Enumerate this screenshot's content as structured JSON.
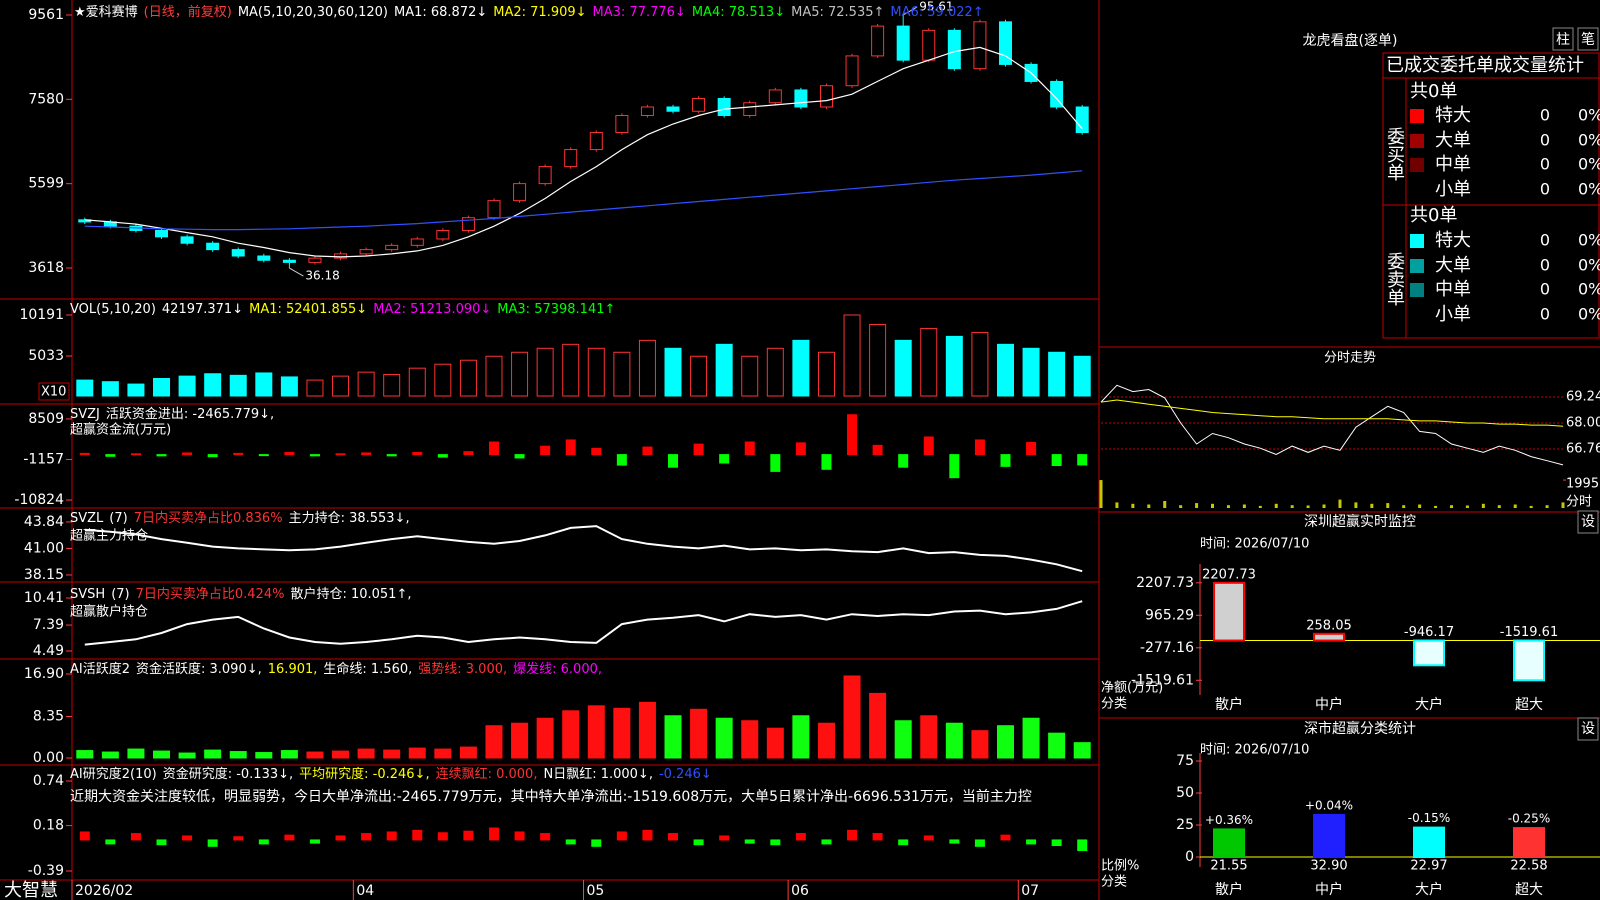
{
  "chart_data": [
    {
      "type": "candlestick",
      "title": "★爱科赛博",
      "subtitle": "(日线，前复权)",
      "indicator": "MA(5,10,20,30,60,120)",
      "legend": [
        {
          "label": "MA1: 68.872↓",
          "color": "#ffffff"
        },
        {
          "label": "MA2: 71.909↓",
          "color": "#ffff00"
        },
        {
          "label": "MA3: 77.776↓",
          "color": "#ff00ff"
        },
        {
          "label": "MA4: 78.513↓",
          "color": "#00ff00"
        },
        {
          "label": "MA5: 72.535↑",
          "color": "#c0c0c0"
        },
        {
          "label": "MA6: 59.022↑",
          "color": "#3050ff"
        }
      ],
      "open": [
        4750,
        4700,
        4600,
        4500,
        4350,
        4200,
        4050,
        3900,
        3800,
        3750,
        3850,
        3950,
        4050,
        4150,
        4300,
        4500,
        4800,
        5200,
        5600,
        6000,
        6400,
        6800,
        7200,
        7400,
        7300,
        7600,
        7200,
        7500,
        7800,
        7400,
        7900,
        8600,
        9300,
        8500,
        9200,
        8300,
        9400,
        8400,
        8000,
        7400
      ],
      "high": [
        4800,
        4750,
        4650,
        4550,
        4400,
        4250,
        4100,
        3950,
        3850,
        3900,
        4000,
        4100,
        4200,
        4350,
        4550,
        4850,
        5250,
        5650,
        6050,
        6450,
        6850,
        7250,
        7450,
        7450,
        7650,
        7650,
        7550,
        7850,
        7850,
        7950,
        8650,
        9350,
        9561,
        9250,
        9250,
        9450,
        9450,
        8450,
        8050,
        7450
      ],
      "low": [
        4650,
        4550,
        4450,
        4300,
        4150,
        4000,
        3850,
        3750,
        3618,
        3700,
        3800,
        3900,
        4000,
        4100,
        4250,
        4450,
        4750,
        5150,
        5550,
        5950,
        6350,
        6750,
        7150,
        7250,
        7250,
        7150,
        7150,
        7450,
        7350,
        7350,
        7850,
        8550,
        8450,
        8450,
        8250,
        8250,
        8350,
        7950,
        7350,
        6750
      ],
      "close": [
        4700,
        4600,
        4500,
        4350,
        4200,
        4050,
        3900,
        3800,
        3750,
        3850,
        3950,
        4050,
        4150,
        4300,
        4500,
        4800,
        5200,
        5600,
        6000,
        6400,
        6800,
        7200,
        7400,
        7300,
        7600,
        7200,
        7500,
        7800,
        7400,
        7900,
        8600,
        9300,
        8500,
        9200,
        8300,
        9400,
        8400,
        8000,
        7400,
        6800
      ],
      "up_color": "#ff3232",
      "down_color": "#00ffff",
      "series": [
        {
          "color": "#ffffff",
          "values": [
            4750,
            4700,
            4650,
            4550,
            4450,
            4350,
            4200,
            4100,
            3980,
            3900,
            3880,
            3900,
            3950,
            4020,
            4150,
            4350,
            4600,
            4900,
            5250,
            5650,
            6000,
            6400,
            6750,
            7000,
            7200,
            7350,
            7400,
            7450,
            7500,
            7550,
            7700,
            8000,
            8300,
            8500,
            8700,
            8800,
            8600,
            8200,
            7600,
            6887
          ]
        },
        {
          "color": "#3050ff",
          "values": [
            4600,
            4580,
            4560,
            4540,
            4530,
            4520,
            4520,
            4530,
            4540,
            4560,
            4580,
            4600,
            4630,
            4660,
            4700,
            4740,
            4780,
            4830,
            4880,
            4930,
            4980,
            5030,
            5080,
            5130,
            5180,
            5230,
            5280,
            5330,
            5380,
            5430,
            5480,
            5530,
            5580,
            5630,
            5680,
            5720,
            5760,
            5800,
            5850,
            5902
          ]
        }
      ],
      "annotations": [
        {
          "value": 9561,
          "label": "95.61"
        },
        {
          "value": 3618,
          "label": "36.18"
        }
      ],
      "ylim": [
        2890,
        9866
      ],
      "yticks": [
        3618,
        5599,
        7580,
        9561
      ],
      "xticks": [
        {
          "value": 0,
          "label": "2026/02"
        },
        {
          "value": 11,
          "label": "04"
        },
        {
          "value": 20,
          "label": "05"
        },
        {
          "value": 28,
          "label": "06"
        },
        {
          "value": 37,
          "label": "07"
        }
      ]
    },
    {
      "type": "bar",
      "title": "VOL(5,10,20)",
      "legend": [
        {
          "label": "42197.371↓",
          "color": "#ffffff"
        },
        {
          "label": "MA1: 52401.855↓",
          "color": "#ffff00"
        },
        {
          "label": "MA2: 51213.090↓",
          "color": "#ff00ff"
        },
        {
          "label": "MA3: 57398.141↑",
          "color": "#00ff00"
        }
      ],
      "unit_label": "X10",
      "values": [
        2000,
        1800,
        1500,
        2200,
        2500,
        2800,
        2600,
        2900,
        2400,
        2000,
        2500,
        3000,
        2700,
        3500,
        4000,
        4500,
        5000,
        5500,
        6000,
        6500,
        6000,
        5500,
        7000,
        6000,
        5000,
        6500,
        5000,
        6000,
        7000,
        5500,
        10191,
        9000,
        7000,
        8500,
        7500,
        8000,
        6500,
        6000,
        5500,
        5000
      ],
      "up_color": "#ff3232",
      "down_color": "#00ffff",
      "ylim": [
        0,
        11449
      ],
      "yticks": [
        5033,
        10191
      ]
    },
    {
      "type": "bar",
      "title": "SVZJ",
      "legend": [
        {
          "label": "活跃资金进出: -2465.779↓,",
          "color": "#ffffff"
        }
      ],
      "subtitle": "超赢资金流(万元)",
      "values": [
        300,
        -400,
        200,
        -300,
        400,
        -500,
        300,
        -200,
        500,
        -300,
        200,
        400,
        -300,
        500,
        -600,
        700,
        3000,
        -800,
        2000,
        3500,
        1500,
        -2500,
        1800,
        -3000,
        2500,
        -2000,
        3000,
        -4000,
        2800,
        -3500,
        9500,
        2200,
        -3000,
        4200,
        -5500,
        3500,
        -2800,
        2900,
        -2600,
        -2466
      ],
      "pos_color": "#ff0000",
      "neg_color": "#00ff00",
      "ylim": [
        -11296,
        10631
      ],
      "yticks": [
        -10824,
        -1157,
        8509
      ]
    },
    {
      "type": "line",
      "title": "SVZL",
      "legend": [
        {
          "label": "(7)",
          "color": "#ffffff"
        },
        {
          "label": "7日内买卖净占比0.836%",
          "color": "#ff3232"
        },
        {
          "label": "主力持仓: 38.553↓,",
          "color": "#ffffff"
        }
      ],
      "subtitle": "超赢主力持仓",
      "color": "#ffffff",
      "values": [
        43.0,
        42.8,
        42.5,
        42.0,
        41.6,
        41.2,
        41.0,
        40.9,
        40.8,
        40.9,
        41.2,
        41.6,
        42.0,
        42.3,
        42.0,
        41.7,
        41.5,
        41.8,
        42.4,
        43.2,
        43.4,
        42.0,
        41.5,
        41.2,
        41.0,
        41.3,
        40.9,
        41.0,
        40.8,
        40.9,
        40.7,
        40.6,
        41.0,
        40.5,
        40.6,
        40.3,
        40.2,
        39.8,
        39.3,
        38.553
      ],
      "ylim": [
        37.61,
        44.91
      ],
      "yticks": [
        38.15,
        {
          "value": 41,
          "label": "41.00"
        },
        43.84
      ]
    },
    {
      "type": "line",
      "title": "SVSH",
      "legend": [
        {
          "label": "(7)",
          "color": "#ffffff"
        },
        {
          "label": "7日内买卖净占比0.424%",
          "color": "#ff3232"
        },
        {
          "label": "散户持仓: 10.051↑,",
          "color": "#ffffff"
        }
      ],
      "subtitle": "超赢散户持仓",
      "color": "#ffffff",
      "values": [
        5.2,
        5.5,
        5.8,
        6.5,
        7.5,
        8.0,
        8.3,
        7.0,
        6.0,
        5.5,
        5.3,
        5.5,
        5.8,
        6.2,
        6.0,
        5.5,
        5.8,
        6.0,
        5.8,
        5.5,
        5.4,
        7.5,
        8.0,
        8.2,
        8.5,
        7.8,
        8.6,
        8.3,
        8.5,
        8.0,
        8.6,
        8.4,
        8.6,
        8.5,
        8.9,
        9.0,
        8.6,
        8.8,
        9.2,
        10.051
      ],
      "ylim": [
        3.82,
        11.53
      ],
      "yticks": [
        4.49,
        7.39,
        10.41
      ]
    },
    {
      "type": "bar",
      "title": "AI活跃度2",
      "legend": [
        {
          "label": "资金活跃度: 3.090↓,",
          "color": "#ffffff"
        },
        {
          "label": "16.901,",
          "color": "#ffff00"
        },
        {
          "label": "生命线: 1.560,",
          "color": "#ffffff"
        },
        {
          "label": "强势线: 3.000,",
          "color": "#ff3232"
        },
        {
          "label": "爆发线: 6.000,",
          "color": "#ff00ff"
        }
      ],
      "values": [
        1.5,
        1.2,
        1.8,
        1.4,
        1.0,
        1.6,
        1.3,
        1.1,
        1.5,
        1.2,
        1.4,
        1.8,
        1.6,
        2.0,
        1.8,
        2.2,
        6.5,
        7.0,
        8.0,
        9.5,
        10.5,
        10.0,
        11.2,
        8.5,
        9.8,
        8.0,
        7.5,
        6.0,
        8.5,
        7.0,
        16.5,
        13.0,
        7.5,
        8.5,
        7.0,
        5.5,
        6.5,
        8.0,
        5.0,
        3.09
      ],
      "up_color": "#ff1010",
      "down_color": "#10ff10",
      "ylim": [
        -0.8,
        18.71
      ],
      "yticks": [
        {
          "value": 0,
          "label": "0.00"
        },
        8.35,
        {
          "value": 16.9,
          "label": "16.90"
        }
      ]
    },
    {
      "type": "bar",
      "title": "AI研究度2(10)",
      "legend": [
        {
          "label": "资金研究度: -0.133↓,",
          "color": "#ffffff"
        },
        {
          "label": "平均研究度: -0.246↓,",
          "color": "#ffff00"
        },
        {
          "label": "连续飘红: 0.000,",
          "color": "#ff3232"
        },
        {
          "label": "N日飘红: 1.000↓,",
          "color": "#ffffff"
        },
        {
          "label": "-0.246↓",
          "color": "#3050ff"
        }
      ],
      "note": "近期大资金关注度较低，明显弱势，今日大单净流出:-2465.779万元，其中特大单净流出:-1519.608万元，大单5日累计净出-6696.531万元，当前主力控",
      "values": [
        0.1,
        -0.05,
        0.08,
        -0.06,
        0.05,
        -0.08,
        0.04,
        -0.05,
        0.06,
        -0.04,
        0.05,
        0.08,
        0.1,
        0.12,
        0.09,
        0.11,
        0.15,
        0.1,
        0.08,
        -0.05,
        -0.08,
        0.1,
        0.12,
        0.08,
        -0.06,
        0.05,
        -0.04,
        -0.06,
        0.08,
        -0.05,
        0.12,
        0.08,
        -0.06,
        0.05,
        -0.04,
        -0.08,
        0.06,
        -0.05,
        -0.07,
        -0.133
      ],
      "pos_color": "#ff0000",
      "neg_color": "#00ff00",
      "ylim": [
        -0.478,
        0.878
      ],
      "yticks": [
        -0.39,
        0.18,
        0.74
      ]
    },
    {
      "type": "line",
      "title": "分时走势",
      "series": [
        {
          "color": "#ffffff",
          "values": [
            69.0,
            69.8,
            69.5,
            69.6,
            69.2,
            68.0,
            67.0,
            67.5,
            67.3,
            67.0,
            66.8,
            66.5,
            66.9,
            66.6,
            66.9,
            66.7,
            67.8,
            68.3,
            68.8,
            68.5,
            67.6,
            67.5,
            67.0,
            66.8,
            66.6,
            66.9,
            66.7,
            66.4,
            66.2,
            66.0
          ]
        },
        {
          "color": "#ffff00",
          "values": [
            69.0,
            69.1,
            69.0,
            68.9,
            68.8,
            68.7,
            68.6,
            68.5,
            68.45,
            68.4,
            68.35,
            68.3,
            68.3,
            68.25,
            68.2,
            68.2,
            68.2,
            68.2,
            68.2,
            68.15,
            68.1,
            68.1,
            68.05,
            68.0,
            68.0,
            67.95,
            67.95,
            67.9,
            67.9,
            67.85
          ]
        }
      ],
      "ylim": [
        65.52,
        70.53
      ],
      "yticks": [
        66.76,
        {
          "value": 68,
          "label": "68.00"
        },
        69.24
      ],
      "volume": [
        1995,
        400,
        300,
        250,
        500,
        200,
        350,
        300,
        200,
        250,
        150,
        300,
        200,
        180,
        250,
        600,
        400,
        300,
        350,
        200,
        250,
        150,
        200,
        180,
        300,
        200,
        250,
        150,
        200,
        400
      ],
      "volume_color": "#c8c800",
      "y2lim": [
        0,
        2000
      ],
      "y2ticks": [
        1995
      ],
      "volume_label": "分时"
    },
    {
      "type": "bar",
      "title": "深圳超赢实时监控",
      "subtitle": "时间: 2026/07/10",
      "button": "设",
      "categories": [
        "散户",
        "中户",
        "大户",
        "超大"
      ],
      "values": [
        2207.73,
        258.05,
        -946.17,
        -1519.61
      ],
      "colors": [
        "#d0d0d0",
        "#d0d0d0",
        "#e8ffff",
        "#e8ffff"
      ],
      "edge_colors": [
        "#ff0000",
        "#ff0000",
        "#00ffff",
        "#00ffff"
      ],
      "label_color": "#ff3232",
      "ylim": [
        -1700,
        2621
      ],
      "yticks": [
        -1519.61,
        -277.16,
        965.29,
        2207.73
      ],
      "ylabel": "净额(万元)",
      "xlabel": "分类"
    },
    {
      "type": "bar",
      "title": "深市超赢分类统计",
      "subtitle": "时间: 2026/07/10",
      "button": "设",
      "categories": [
        "散户",
        "中户",
        "大户",
        "超大"
      ],
      "values": [
        21.55,
        32.9,
        22.97,
        22.58
      ],
      "value_labels": [
        "21.55",
        "32.90",
        "22.97",
        "22.58"
      ],
      "changes": [
        "+0.36%",
        "+0.04%",
        "-0.15%",
        "-0.25%"
      ],
      "colors": [
        "#00c800",
        "#2020ff",
        "#00ffff",
        "#ff3232"
      ],
      "label_color": "#ff3232",
      "ylim": [
        0,
        75
      ],
      "yticks": [
        0,
        25,
        50,
        75
      ],
      "ylabel": "比例%",
      "xlabel": "分类"
    }
  ],
  "sidebar": {
    "title": "龙虎看盘(逐单)",
    "buttons": [
      "柱",
      "笔"
    ],
    "table_title": "已成交委托单成交量统计",
    "buy": {
      "label": "委买单",
      "count": "共0单",
      "rows": [
        {
          "name": "特大",
          "vol": "0",
          "pct": "0%",
          "color": "#ff0000"
        },
        {
          "name": "大单",
          "vol": "0",
          "pct": "0%",
          "color": "#a00000"
        },
        {
          "name": "中单",
          "vol": "0",
          "pct": "0%",
          "color": "#700000"
        },
        {
          "name": "小单",
          "vol": "0",
          "pct": "0%"
        }
      ]
    },
    "sell": {
      "label": "委卖单",
      "count": "共0单",
      "rows": [
        {
          "name": "特大",
          "vol": "0",
          "pct": "0%",
          "color": "#00ffff"
        },
        {
          "name": "大单",
          "vol": "0",
          "pct": "0%",
          "color": "#00a0a0"
        },
        {
          "name": "中单",
          "vol": "0",
          "pct": "0%",
          "color": "#008080"
        },
        {
          "name": "小单",
          "vol": "0",
          "pct": "0%"
        }
      ]
    }
  },
  "footer": {
    "brand": "大智慧"
  }
}
